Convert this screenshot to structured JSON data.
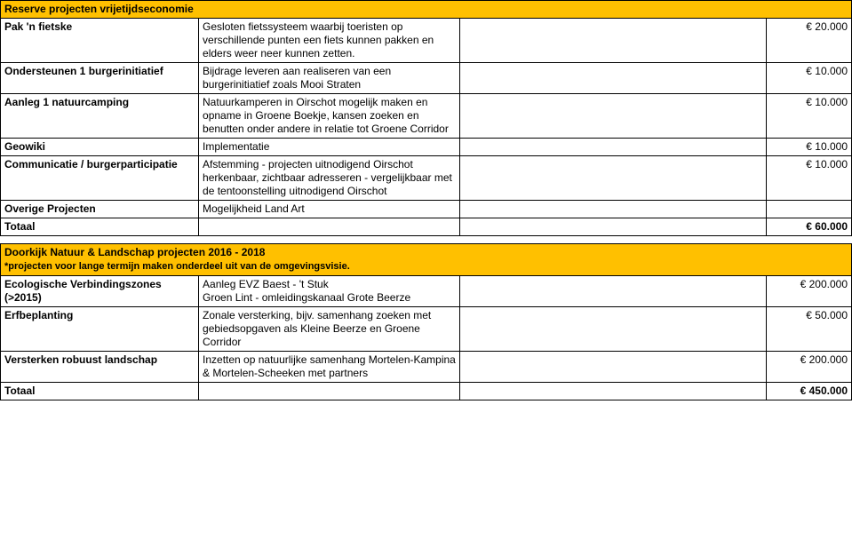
{
  "tables": {
    "reserve": {
      "header": "Reserve projecten vrijetijdseconomie",
      "rows": [
        {
          "name": "Pak 'n fietske",
          "desc": "Gesloten fietssysteem waarbij toeristen op verschillende punten een fiets kunnen pakken en elders weer neer kunnen zetten.",
          "amount": "€ 20.000"
        },
        {
          "name": "Ondersteunen 1 burgerinitiatief",
          "desc": "Bijdrage leveren aan realiseren van een burgerinitiatief zoals Mooi Straten",
          "amount": "€ 10.000"
        },
        {
          "name": "Aanleg 1 natuurcamping",
          "desc": "Natuurkamperen in Oirschot mogelijk maken en opname in Groene Boekje, kansen zoeken en benutten onder andere in relatie tot Groene Corridor",
          "amount": "€ 10.000"
        },
        {
          "name": "Geowiki",
          "desc": "Implementatie",
          "amount": "€ 10.000"
        },
        {
          "name": "Communicatie / burgerparticipatie",
          "desc": "Afstemming - projecten uitnodigend Oirschot herkenbaar, zichtbaar adresseren - vergelijkbaar met de tentoonstelling uitnodigend Oirschot",
          "amount": "€ 10.000"
        },
        {
          "name": "Overige Projecten",
          "desc": "Mogelijkheid Land Art",
          "amount": ""
        }
      ],
      "total_label": "Totaal",
      "total_amount": "€ 60.000"
    },
    "doorkijk": {
      "header": "Doorkijk Natuur & Landschap projecten 2016 - 2018",
      "sub": "*projecten voor lange termijn maken onderdeel uit van de omgevingsvisie.",
      "rows": [
        {
          "name": "Ecologische Verbindingszones (>2015)",
          "desc": "Aanleg EVZ Baest - 't Stuk\nGroen Lint - omleidingskanaal Grote Beerze",
          "amount": "€ 200.000"
        },
        {
          "name": "Erfbeplanting",
          "desc": "Zonale versterking, bijv. samenhang zoeken met gebiedsopgaven als Kleine Beerze en Groene Corridor",
          "amount": "€ 50.000"
        },
        {
          "name": "Versterken robuust landschap",
          "desc": "Inzetten op natuurlijke samenhang Mortelen-Kampina & Mortelen-Scheeken met partners",
          "amount": "€ 200.000"
        }
      ],
      "total_label": "Totaal",
      "total_amount": "€ 450.000"
    }
  }
}
